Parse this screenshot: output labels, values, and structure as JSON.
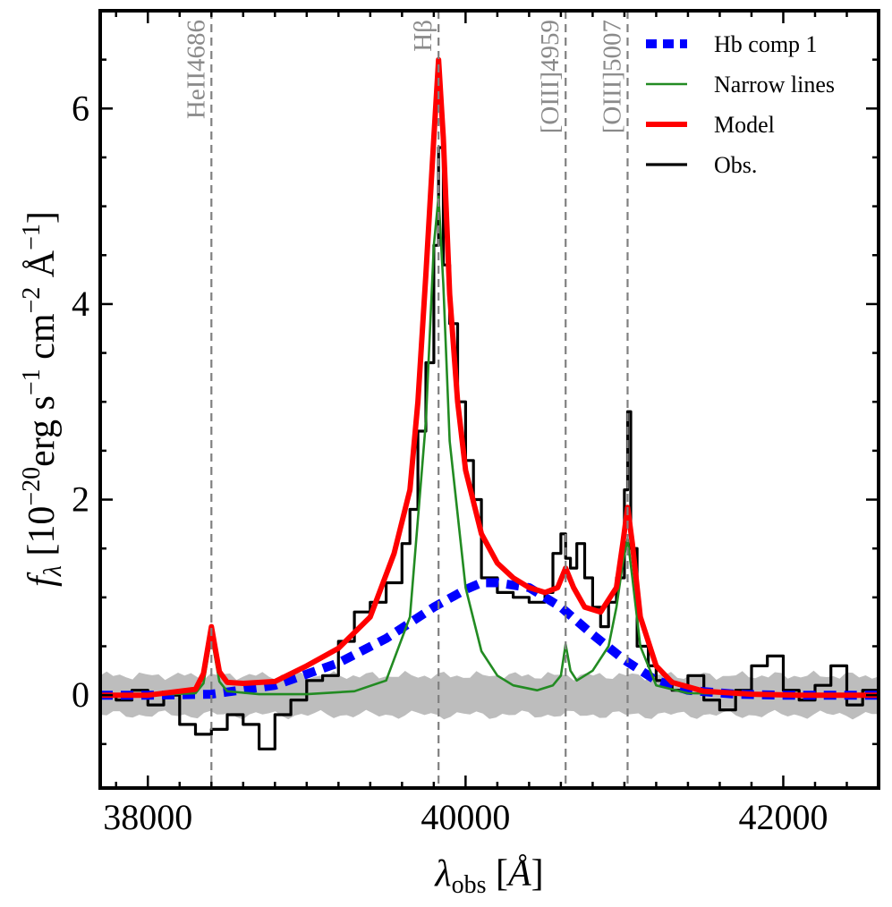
{
  "chart_data": {
    "type": "line",
    "title": "",
    "xlabel": "λ_obs [Å]",
    "ylabel": "f_λ [10^-20 erg s^-1 cm^-2 Å^-1]",
    "xlim": [
      37700,
      42600
    ],
    "ylim": [
      -0.95,
      7.0
    ],
    "xticks": [
      38000,
      40000,
      42000
    ],
    "xtick_labels": [
      "38000",
      "40000",
      "42000"
    ],
    "yticks": [
      0,
      2,
      4,
      6
    ],
    "ytick_labels": [
      "0",
      "2",
      "4",
      "6"
    ],
    "emission_lines": [
      {
        "name": "HeII4686",
        "x": 38400
      },
      {
        "name": "Hβ",
        "x": 39830
      },
      {
        "name": "[OIII]4959",
        "x": 40630
      },
      {
        "name": "[OIII]5007",
        "x": 41020
      }
    ],
    "legend": {
      "position": "top-right",
      "entries": [
        {
          "label": "Hb comp 1",
          "color": "#0000ff",
          "style": "dotted"
        },
        {
          "label": "Narrow lines",
          "color": "#228b22",
          "style": "solid"
        },
        {
          "label": "Model",
          "color": "#ff0000",
          "style": "solid"
        },
        {
          "label": "Obs.",
          "color": "#000000",
          "style": "solid"
        }
      ]
    },
    "error_band": {
      "color": "#bdbdbd",
      "center": 0.0,
      "halfwidth": 0.2
    },
    "series": [
      {
        "name": "Obs.",
        "color": "#000000",
        "style": "step",
        "x": [
          37700,
          37800,
          37900,
          38000,
          38100,
          38200,
          38300,
          38400,
          38500,
          38600,
          38700,
          38800,
          38900,
          39000,
          39100,
          39200,
          39300,
          39400,
          39500,
          39600,
          39650,
          39700,
          39750,
          39800,
          39830,
          39860,
          39900,
          39950,
          40000,
          40050,
          40100,
          40200,
          40300,
          40400,
          40500,
          40550,
          40600,
          40630,
          40660,
          40700,
          40750,
          40800,
          40850,
          40900,
          40950,
          41000,
          41020,
          41040,
          41080,
          41150,
          41200,
          41300,
          41400,
          41500,
          41600,
          41700,
          41800,
          41900,
          42000,
          42100,
          42200,
          42300,
          42400,
          42500,
          42600
        ],
        "y": [
          0.0,
          -0.05,
          0.05,
          -0.1,
          0.0,
          -0.3,
          -0.4,
          -0.35,
          -0.2,
          -0.3,
          -0.55,
          -0.2,
          -0.05,
          0.15,
          0.2,
          0.55,
          0.85,
          0.95,
          1.15,
          1.55,
          1.9,
          2.7,
          3.4,
          4.6,
          5.6,
          4.4,
          3.8,
          3.0,
          2.4,
          2.0,
          1.2,
          1.05,
          1.0,
          0.95,
          1.05,
          1.45,
          1.65,
          1.4,
          1.3,
          1.55,
          1.2,
          0.9,
          0.7,
          0.95,
          1.2,
          2.1,
          2.9,
          1.5,
          0.5,
          0.3,
          0.15,
          0.05,
          0.2,
          -0.05,
          -0.15,
          0.05,
          0.3,
          0.4,
          0.05,
          -0.05,
          0.1,
          0.3,
          -0.1,
          0.05,
          0.0
        ]
      },
      {
        "name": "Hb comp 1",
        "color": "#0000ff",
        "style": "dotted",
        "x": [
          37700,
          38000,
          38400,
          38800,
          39200,
          39500,
          39800,
          40000,
          40100,
          40200,
          40400,
          40600,
          40800,
          41000,
          41200,
          41400,
          41700,
          42000,
          42300,
          42600
        ],
        "y": [
          0.0,
          0.0,
          0.01,
          0.1,
          0.33,
          0.58,
          0.9,
          1.08,
          1.15,
          1.15,
          1.1,
          0.9,
          0.62,
          0.36,
          0.15,
          0.05,
          0.01,
          0.0,
          0.0,
          0.0
        ]
      },
      {
        "name": "Narrow lines",
        "color": "#228b22",
        "style": "solid",
        "x": [
          37700,
          38000,
          38300,
          38350,
          38400,
          38450,
          38500,
          38700,
          39000,
          39300,
          39500,
          39650,
          39750,
          39800,
          39830,
          39860,
          39900,
          40000,
          40100,
          40200,
          40300,
          40450,
          40550,
          40600,
          40630,
          40660,
          40700,
          40800,
          40900,
          40950,
          40990,
          41020,
          41050,
          41100,
          41200,
          41400,
          42600
        ],
        "y": [
          0.0,
          0.0,
          0.02,
          0.12,
          0.6,
          0.14,
          0.04,
          0.01,
          0.01,
          0.04,
          0.15,
          0.8,
          2.8,
          4.6,
          5.1,
          4.2,
          2.6,
          1.1,
          0.45,
          0.2,
          0.1,
          0.05,
          0.1,
          0.2,
          0.52,
          0.25,
          0.15,
          0.25,
          0.5,
          0.9,
          1.35,
          1.6,
          1.2,
          0.5,
          0.1,
          0.02,
          0.0
        ]
      },
      {
        "name": "Model",
        "color": "#ff0000",
        "style": "solid",
        "x": [
          37700,
          38000,
          38300,
          38350,
          38400,
          38450,
          38500,
          38600,
          38800,
          39000,
          39200,
          39400,
          39550,
          39650,
          39700,
          39750,
          39800,
          39830,
          39860,
          39900,
          39950,
          40000,
          40100,
          40200,
          40300,
          40400,
          40500,
          40580,
          40630,
          40680,
          40750,
          40850,
          40950,
          40990,
          41020,
          41050,
          41100,
          41200,
          41300,
          41500,
          41800,
          42100,
          42600
        ],
        "y": [
          0.0,
          0.0,
          0.06,
          0.22,
          0.7,
          0.24,
          0.13,
          0.12,
          0.14,
          0.3,
          0.48,
          0.8,
          1.45,
          2.1,
          3.0,
          4.3,
          5.7,
          6.5,
          5.7,
          4.1,
          3.0,
          2.3,
          1.65,
          1.35,
          1.2,
          1.1,
          1.05,
          1.1,
          1.3,
          1.1,
          0.9,
          0.85,
          1.1,
          1.55,
          1.92,
          1.55,
          0.8,
          0.3,
          0.13,
          0.04,
          0.01,
          0.0,
          0.0
        ]
      }
    ]
  }
}
